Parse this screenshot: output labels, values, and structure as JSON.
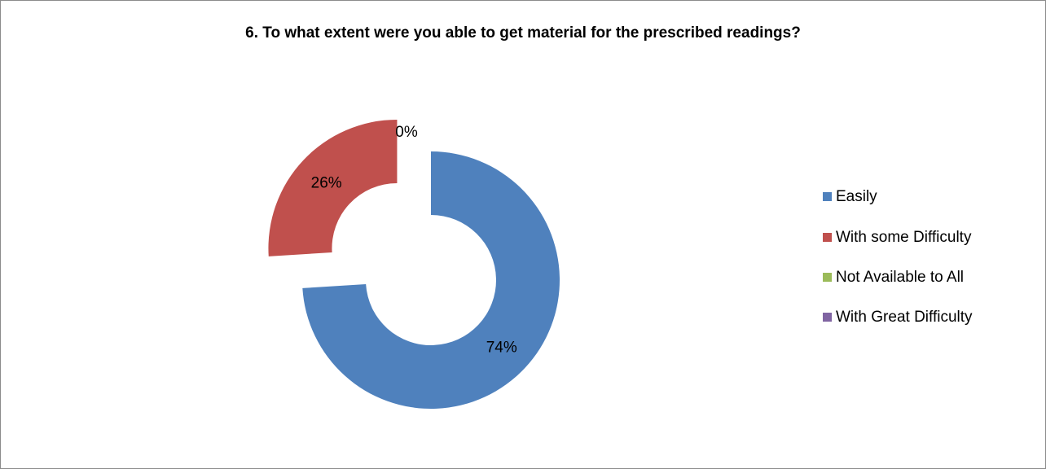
{
  "chart_data": {
    "type": "donut",
    "title": "6. To what extent were you able to get material for the prescribed readings?",
    "series": [
      {
        "name": "Easily",
        "value": 74,
        "label": "74%",
        "color": "#4f81bd"
      },
      {
        "name": "With some Difficulty",
        "value": 26,
        "label": "26%",
        "color": "#c0504d"
      },
      {
        "name": "Not Available to All",
        "value": 0,
        "label": "0%",
        "color": "#9bbb59"
      },
      {
        "name": "With Great Difficulty",
        "value": 0,
        "label": "",
        "color": "#8064a2"
      }
    ],
    "legend_position": "right",
    "exploded": true
  }
}
